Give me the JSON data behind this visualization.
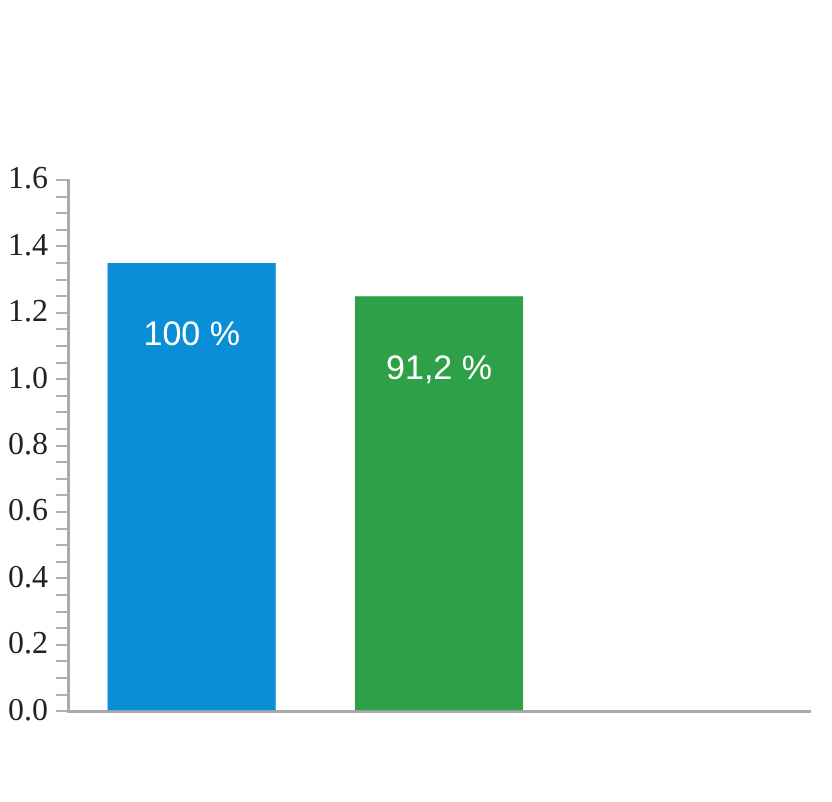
{
  "chart_data": {
    "type": "bar",
    "categories": [
      null,
      null,
      null
    ],
    "values": [
      1.35,
      1.25,
      null
    ],
    "colors": [
      "#0a8fd6",
      "#2ea048",
      null
    ],
    "annotations": [
      {
        "text": "100 %",
        "y": 1.35
      },
      {
        "text": "91,2 %",
        "y": 1.25
      }
    ],
    "ylim": [
      0,
      1.6
    ],
    "yticks": [
      {
        "value": 0,
        "label": "0.0"
      },
      {
        "value": 0.05,
        "label": null
      },
      {
        "value": 0.1,
        "label": null
      },
      {
        "value": 0.15,
        "label": null
      },
      {
        "value": 0.2,
        "label": "0.2"
      },
      {
        "value": 0.25,
        "label": null
      },
      {
        "value": 0.3,
        "label": null
      },
      {
        "value": 0.35,
        "label": null
      },
      {
        "value": 0.4,
        "label": "0.4"
      },
      {
        "value": 0.45,
        "label": null
      },
      {
        "value": 0.5,
        "label": null
      },
      {
        "value": 0.55,
        "label": null
      },
      {
        "value": 0.6,
        "label": "0.6"
      },
      {
        "value": 0.65,
        "label": null
      },
      {
        "value": 0.7,
        "label": null
      },
      {
        "value": 0.75,
        "label": null
      },
      {
        "value": 0.8,
        "label": "0.8"
      },
      {
        "value": 0.85,
        "label": null
      },
      {
        "value": 0.9,
        "label": null
      },
      {
        "value": 0.95,
        "label": null
      },
      {
        "value": 1,
        "label": "1.0"
      },
      {
        "value": 1.05,
        "label": null
      },
      {
        "value": 1.1,
        "label": null
      },
      {
        "value": 1.15,
        "label": null
      },
      {
        "value": 1.2,
        "label": "1.2"
      },
      {
        "value": 1.25,
        "label": null
      },
      {
        "value": 1.3,
        "label": null
      },
      {
        "value": 1.35,
        "label": null
      },
      {
        "value": 1.4,
        "label": "1.4"
      },
      {
        "value": 1.45,
        "label": null
      },
      {
        "value": 1.5,
        "label": null
      },
      {
        "value": 1.55,
        "label": null
      },
      {
        "value": 1.6,
        "label": "1.6"
      }
    ],
    "grid": false,
    "legend": false
  }
}
